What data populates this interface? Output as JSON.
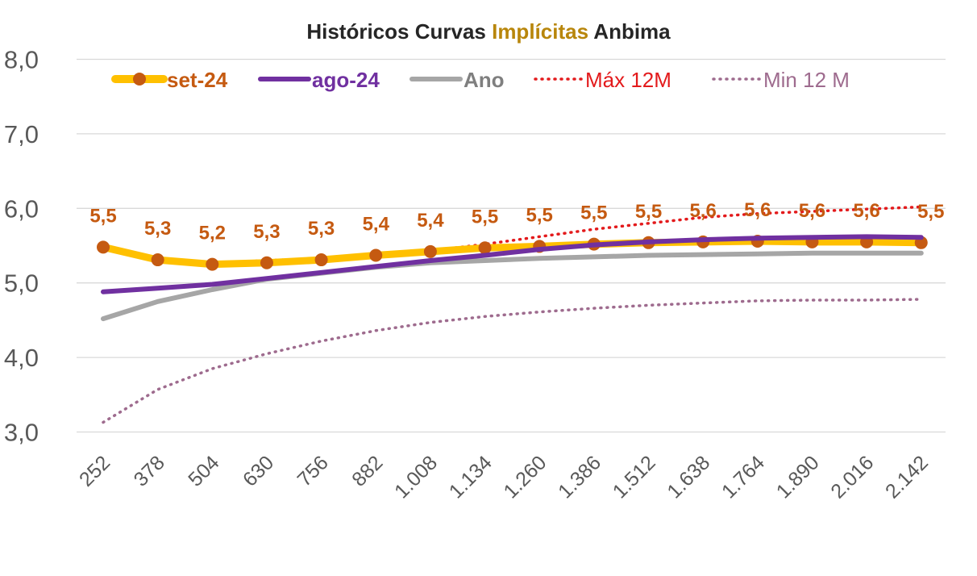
{
  "chart_data": {
    "type": "line",
    "title_parts": [
      {
        "text": "Históricos Curvas ",
        "color": "#262626"
      },
      {
        "text": "Implícitas",
        "color": "#B8860B"
      },
      {
        "text": " Anbima",
        "color": "#262626"
      }
    ],
    "categories": [
      "252",
      "378",
      "504",
      "630",
      "756",
      "882",
      "1.008",
      "1.134",
      "1.260",
      "1.386",
      "1.512",
      "1.638",
      "1.764",
      "1.890",
      "2.016",
      "2.142"
    ],
    "ylim": [
      3.0,
      8.0
    ],
    "yticks": [
      "3,0",
      "4,0",
      "5,0",
      "6,0",
      "7,0",
      "8,0"
    ],
    "ytick_values": [
      3.0,
      4.0,
      5.0,
      6.0,
      7.0,
      8.0
    ],
    "grid": true,
    "legend_position": "top",
    "series": [
      {
        "name": "set-24",
        "color": "#FFC000",
        "marker_color": "#C55A11",
        "label_color": "#C55A11",
        "style": "solid-marker",
        "values": [
          5.48,
          5.31,
          5.25,
          5.27,
          5.31,
          5.37,
          5.42,
          5.47,
          5.49,
          5.52,
          5.54,
          5.55,
          5.56,
          5.55,
          5.55,
          5.54
        ],
        "labels": [
          "5,5",
          "5,3",
          "5,2",
          "5,3",
          "5,3",
          "5,4",
          "5,4",
          "5,5",
          "5,5",
          "5,5",
          "5,5",
          "5,6",
          "5,6",
          "5,6",
          "5,6",
          "5,5"
        ]
      },
      {
        "name": "ago-24",
        "color": "#7030A0",
        "style": "solid",
        "values": [
          4.88,
          4.93,
          4.98,
          5.06,
          5.14,
          5.22,
          5.3,
          5.37,
          5.45,
          5.51,
          5.55,
          5.58,
          5.6,
          5.61,
          5.62,
          5.61
        ]
      },
      {
        "name": "Ano",
        "color": "#A6A6A6",
        "style": "solid",
        "values": [
          4.52,
          4.75,
          4.91,
          5.05,
          5.13,
          5.21,
          5.27,
          5.3,
          5.33,
          5.35,
          5.37,
          5.38,
          5.39,
          5.4,
          5.4,
          5.4
        ]
      },
      {
        "name": "Máx 12M",
        "color": "#E31A1C",
        "style": "dotted",
        "values": [
          5.5,
          5.32,
          5.27,
          5.3,
          5.33,
          5.38,
          5.43,
          5.52,
          5.62,
          5.72,
          5.8,
          5.88,
          5.93,
          5.96,
          5.99,
          6.02
        ]
      },
      {
        "name": "Min 12 M",
        "color": "#9E6B8E",
        "style": "dotted",
        "values": [
          3.13,
          3.57,
          3.85,
          4.05,
          4.22,
          4.36,
          4.47,
          4.55,
          4.61,
          4.66,
          4.7,
          4.73,
          4.76,
          4.77,
          4.77,
          4.78
        ]
      }
    ]
  }
}
